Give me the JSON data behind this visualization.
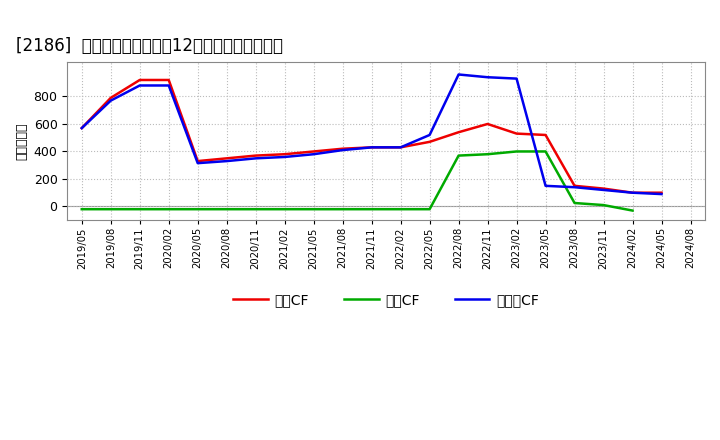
{
  "title": "[2186]  キャッシュフローの12か月移動合計の推移",
  "ylabel": "（百万円）",
  "background_color": "#ffffff",
  "plot_bg_color": "#ffffff",
  "grid_color": "#bbbbbb",
  "dates": [
    "2019/05",
    "2019/08",
    "2019/11",
    "2020/02",
    "2020/05",
    "2020/08",
    "2020/11",
    "2021/02",
    "2021/05",
    "2021/08",
    "2021/11",
    "2022/02",
    "2022/05",
    "2022/08",
    "2022/11",
    "2023/02",
    "2023/05",
    "2023/08",
    "2023/11",
    "2024/02",
    "2024/05",
    "2024/08"
  ],
  "eigyo_cf": [
    570,
    790,
    920,
    920,
    330,
    350,
    370,
    380,
    400,
    420,
    430,
    430,
    470,
    540,
    600,
    530,
    520,
    150,
    130,
    100,
    100,
    null
  ],
  "toshi_cf": [
    -20,
    -20,
    -20,
    -20,
    -20,
    -20,
    -20,
    -20,
    -20,
    -20,
    -20,
    -20,
    -20,
    370,
    380,
    400,
    400,
    25,
    10,
    -30,
    null,
    null
  ],
  "free_cf": [
    570,
    770,
    880,
    880,
    315,
    330,
    350,
    360,
    380,
    410,
    430,
    430,
    520,
    960,
    940,
    930,
    150,
    140,
    120,
    100,
    90,
    null
  ],
  "eigyo_color": "#ee0000",
  "toshi_color": "#00aa00",
  "free_color": "#0000ee",
  "line_width": 1.8,
  "ylim": [
    -100,
    1050
  ],
  "title_fontsize": 12,
  "legend_labels": [
    "営業CF",
    "投資CF",
    "フリーCF"
  ],
  "yticks": [
    0,
    200,
    400,
    600,
    800
  ]
}
